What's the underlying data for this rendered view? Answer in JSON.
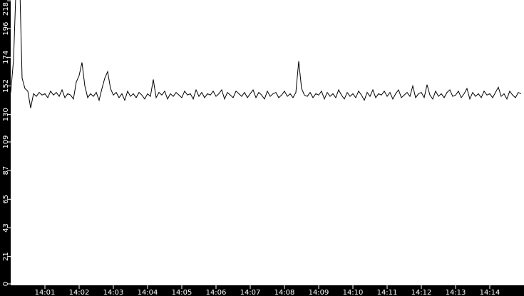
{
  "chart_data": {
    "type": "line",
    "title": "",
    "xlabel": "",
    "ylabel": "",
    "x_start": "14:00:00",
    "x_step_seconds": 5,
    "xlim": [
      "14:00",
      "14:15"
    ],
    "ylim": [
      0,
      218
    ],
    "x_ticks": [
      "14:01",
      "14:02",
      "14:03",
      "14:04",
      "14:05",
      "14:06",
      "14:07",
      "14:08",
      "14:09",
      "14:10",
      "14:11",
      "14:12",
      "14:13",
      "14:14"
    ],
    "y_ticks": [
      "0",
      "21",
      "43",
      "65",
      "87",
      "109",
      "130",
      "152",
      "174",
      "196",
      "218"
    ],
    "grid": false,
    "colors": {
      "line": "#000000",
      "axis_band": "#000000",
      "plot_bg": "#ffffff",
      "tick_text": "#ffffff"
    },
    "series": [
      {
        "values": [
          147,
          172,
          236,
          245,
          158,
          150,
          148,
          135,
          146,
          144,
          147,
          145,
          146,
          143,
          148,
          145,
          147,
          144,
          149,
          143,
          146,
          145,
          142,
          155,
          160,
          170,
          152,
          143,
          146,
          144,
          147,
          141,
          150,
          158,
          163,
          150,
          145,
          147,
          143,
          146,
          141,
          148,
          144,
          146,
          143,
          147,
          145,
          142,
          146,
          144,
          157,
          143,
          147,
          145,
          148,
          142,
          146,
          144,
          147,
          145,
          143,
          148,
          145,
          146,
          142,
          149,
          144,
          147,
          143,
          146,
          145,
          148,
          144,
          146,
          149,
          142,
          147,
          145,
          143,
          148,
          146,
          144,
          147,
          143,
          146,
          149,
          143,
          147,
          145,
          142,
          148,
          144,
          146,
          147,
          143,
          145,
          148,
          144,
          146,
          143,
          147,
          171,
          150,
          145,
          144,
          147,
          143,
          146,
          145,
          148,
          142,
          147,
          144,
          146,
          143,
          149,
          145,
          142,
          147,
          144,
          146,
          143,
          148,
          145,
          141,
          147,
          144,
          149,
          143,
          146,
          145,
          148,
          144,
          147,
          142,
          146,
          149,
          143,
          145,
          147,
          144,
          152,
          143,
          146,
          147,
          143,
          153,
          145,
          142,
          148,
          144,
          146,
          143,
          147,
          149,
          144,
          145,
          148,
          143,
          146,
          150,
          142,
          147,
          144,
          146,
          143,
          148,
          145,
          146,
          143,
          147,
          151,
          144,
          146,
          142,
          148,
          145,
          143,
          147,
          146
        ]
      }
    ]
  }
}
